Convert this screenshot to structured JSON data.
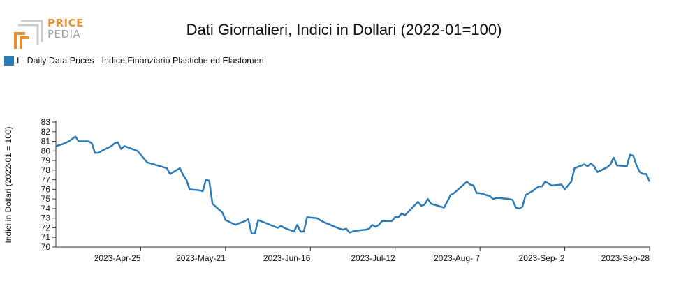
{
  "brand": {
    "line1": "PRICE",
    "line2": "PEDIA",
    "accent": "#e8902a",
    "muted": "#9aa3aa"
  },
  "chart_data": {
    "type": "line",
    "title": "Dati Giornalieri, Indici in Dollari (2022-01=100)",
    "ylabel": "Indici in Dollari (2022-01 = 100)",
    "xlabel": "",
    "ylim": [
      70,
      83
    ],
    "yticks": [
      70,
      71,
      72,
      73,
      74,
      75,
      76,
      77,
      78,
      79,
      80,
      81,
      82,
      83
    ],
    "x_range": [
      "2023-03-30",
      "2023-09-28"
    ],
    "xticks": [
      {
        "date": "2023-04-25",
        "label": "2023-Apr-25"
      },
      {
        "date": "2023-05-21",
        "label": "2023-May-21"
      },
      {
        "date": "2023-06-16",
        "label": "2023-Jun-16"
      },
      {
        "date": "2023-07-12",
        "label": "2023-Jul-12"
      },
      {
        "date": "2023-08-07",
        "label": "2023-Aug- 7"
      },
      {
        "date": "2023-09-02",
        "label": "2023-Sep- 2"
      },
      {
        "date": "2023-09-28",
        "label": "2023-Sep-28"
      }
    ],
    "legend_position": "top-left",
    "series": [
      {
        "name": "I - Daily Data Prices - Indice Finanziario Plastiche ed Elastomeri",
        "color": "#2b7bb9",
        "points": [
          [
            "2023-03-30",
            80.5
          ],
          [
            "2023-04-01",
            80.7
          ],
          [
            "2023-04-03",
            81.0
          ],
          [
            "2023-04-05",
            81.5
          ],
          [
            "2023-04-06",
            81.0
          ],
          [
            "2023-04-09",
            81.0
          ],
          [
            "2023-04-10",
            80.8
          ],
          [
            "2023-04-11",
            79.8
          ],
          [
            "2023-04-12",
            79.8
          ],
          [
            "2023-04-13",
            80.0
          ],
          [
            "2023-04-16",
            80.5
          ],
          [
            "2023-04-17",
            80.8
          ],
          [
            "2023-04-18",
            80.9
          ],
          [
            "2023-04-19",
            80.2
          ],
          [
            "2023-04-20",
            80.5
          ],
          [
            "2023-04-24",
            80.0
          ],
          [
            "2023-04-27",
            78.8
          ],
          [
            "2023-05-03",
            78.2
          ],
          [
            "2023-05-04",
            77.6
          ],
          [
            "2023-05-06",
            78.0
          ],
          [
            "2023-05-07",
            78.2
          ],
          [
            "2023-05-08",
            77.5
          ],
          [
            "2023-05-09",
            77.0
          ],
          [
            "2023-05-10",
            76.0
          ],
          [
            "2023-05-13",
            75.9
          ],
          [
            "2023-05-14",
            75.8
          ],
          [
            "2023-05-15",
            77.0
          ],
          [
            "2023-05-16",
            76.9
          ],
          [
            "2023-05-17",
            74.5
          ],
          [
            "2023-05-20",
            73.6
          ],
          [
            "2023-05-21",
            72.8
          ],
          [
            "2023-05-24",
            72.3
          ],
          [
            "2023-05-27",
            72.7
          ],
          [
            "2023-05-28",
            72.9
          ],
          [
            "2023-05-29",
            71.4
          ],
          [
            "2023-05-30",
            71.4
          ],
          [
            "2023-05-31",
            72.8
          ],
          [
            "2023-06-06",
            72.0
          ],
          [
            "2023-06-07",
            72.2
          ],
          [
            "2023-06-08",
            72.0
          ],
          [
            "2023-06-11",
            71.6
          ],
          [
            "2023-06-12",
            72.3
          ],
          [
            "2023-06-13",
            71.6
          ],
          [
            "2023-06-14",
            71.6
          ],
          [
            "2023-06-15",
            73.1
          ],
          [
            "2023-06-18",
            73.0
          ],
          [
            "2023-06-19",
            72.8
          ],
          [
            "2023-06-20",
            72.6
          ],
          [
            "2023-06-25",
            71.9
          ],
          [
            "2023-06-26",
            71.8
          ],
          [
            "2023-06-27",
            71.9
          ],
          [
            "2023-06-28",
            71.5
          ],
          [
            "2023-06-30",
            71.7
          ],
          [
            "2023-07-03",
            71.8
          ],
          [
            "2023-07-04",
            71.9
          ],
          [
            "2023-07-05",
            72.3
          ],
          [
            "2023-07-06",
            72.1
          ],
          [
            "2023-07-07",
            72.3
          ],
          [
            "2023-07-08",
            72.7
          ],
          [
            "2023-07-11",
            72.7
          ],
          [
            "2023-07-12",
            73.1
          ],
          [
            "2023-07-13",
            73.1
          ],
          [
            "2023-07-14",
            73.5
          ],
          [
            "2023-07-15",
            73.3
          ],
          [
            "2023-07-19",
            74.7
          ],
          [
            "2023-07-20",
            74.3
          ],
          [
            "2023-07-21",
            74.4
          ],
          [
            "2023-07-22",
            75.0
          ],
          [
            "2023-07-23",
            74.5
          ],
          [
            "2023-07-26",
            74.2
          ],
          [
            "2023-07-27",
            74.1
          ],
          [
            "2023-07-29",
            75.4
          ],
          [
            "2023-07-30",
            75.6
          ],
          [
            "2023-07-31",
            75.9
          ],
          [
            "2023-08-03",
            76.8
          ],
          [
            "2023-08-04",
            76.5
          ],
          [
            "2023-08-05",
            76.4
          ],
          [
            "2023-08-06",
            75.6
          ],
          [
            "2023-08-07",
            75.6
          ],
          [
            "2023-08-10",
            75.3
          ],
          [
            "2023-08-11",
            75.0
          ],
          [
            "2023-08-12",
            75.1
          ],
          [
            "2023-08-13",
            75.1
          ],
          [
            "2023-08-16",
            75.0
          ],
          [
            "2023-08-17",
            74.9
          ],
          [
            "2023-08-18",
            74.1
          ],
          [
            "2023-08-19",
            74.0
          ],
          [
            "2023-08-20",
            74.2
          ],
          [
            "2023-08-21",
            75.4
          ],
          [
            "2023-08-23",
            75.8
          ],
          [
            "2023-08-25",
            76.3
          ],
          [
            "2023-08-26",
            76.3
          ],
          [
            "2023-08-27",
            76.8
          ],
          [
            "2023-08-28",
            76.6
          ],
          [
            "2023-08-29",
            76.4
          ],
          [
            "2023-09-01",
            76.5
          ],
          [
            "2023-09-02",
            76.0
          ],
          [
            "2023-09-03",
            76.4
          ],
          [
            "2023-09-04",
            76.8
          ],
          [
            "2023-09-05",
            78.2
          ],
          [
            "2023-09-08",
            78.6
          ],
          [
            "2023-09-09",
            78.4
          ],
          [
            "2023-09-10",
            78.7
          ],
          [
            "2023-09-11",
            78.4
          ],
          [
            "2023-09-12",
            77.8
          ],
          [
            "2023-09-15",
            78.3
          ],
          [
            "2023-09-16",
            78.6
          ],
          [
            "2023-09-17",
            79.3
          ],
          [
            "2023-09-18",
            78.5
          ],
          [
            "2023-09-21",
            78.4
          ],
          [
            "2023-09-22",
            79.6
          ],
          [
            "2023-09-23",
            79.5
          ],
          [
            "2023-09-24",
            78.5
          ],
          [
            "2023-09-25",
            77.8
          ],
          [
            "2023-09-26",
            77.6
          ],
          [
            "2023-09-27",
            77.6
          ],
          [
            "2023-09-28",
            76.8
          ]
        ]
      }
    ]
  }
}
